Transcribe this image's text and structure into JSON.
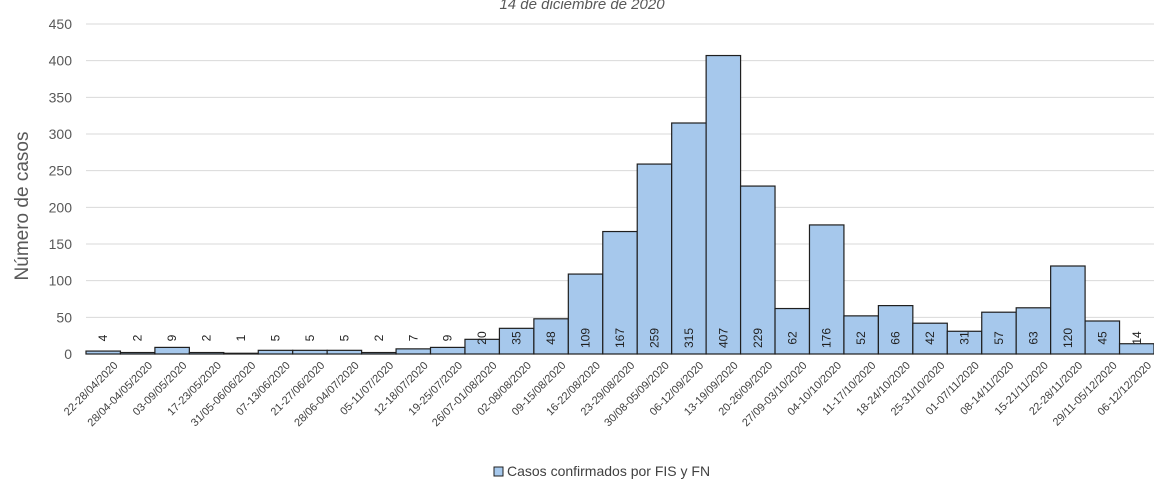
{
  "chart_data": {
    "type": "bar",
    "title": "14 de diciembre de 2020",
    "xlabel": "",
    "ylabel": "Número de casos",
    "ylim": [
      0,
      450
    ],
    "yticks": [
      0,
      50,
      100,
      150,
      200,
      250,
      300,
      350,
      400,
      450
    ],
    "grid": true,
    "legend_position": "bottom",
    "categories": [
      "22-28/04/2020",
      "28/04-04/05/2020",
      "03-09/05/2020",
      "17-23/05/2020",
      "31/05-06/06/2020",
      "07-13/06/2020",
      "21-27/06/2020",
      "28/06-04/07/2020",
      "05-11/07/2020",
      "12-18/07/2020",
      "19-25/07/2020",
      "26/07-01/08/2020",
      "02-08/08/2020",
      "09-15/08/2020",
      "16-22/08/2020",
      "23-29/08/2020",
      "30/08-05/09/2020",
      "06-12/09/2020",
      "13-19/09/2020",
      "20-26/09/2020",
      "27/09-03/10/2020",
      "04-10/10/2020",
      "11-17/10/2020",
      "18-24/10/2020",
      "25-31/10/2020",
      "01-07/11/2020",
      "08-14/11/2020",
      "15-21/11/2020",
      "22-28/11/2020",
      "29/11-05/12/2020",
      "06-12/12/2020"
    ],
    "series": [
      {
        "name": "Casos confirmados por FIS y FN",
        "color": "#a6c8ec",
        "values": [
          4,
          2,
          9,
          2,
          1,
          5,
          5,
          5,
          2,
          7,
          9,
          20,
          35,
          48,
          109,
          167,
          259,
          315,
          407,
          229,
          62,
          176,
          52,
          66,
          42,
          31,
          57,
          63,
          120,
          45,
          14
        ]
      }
    ]
  }
}
